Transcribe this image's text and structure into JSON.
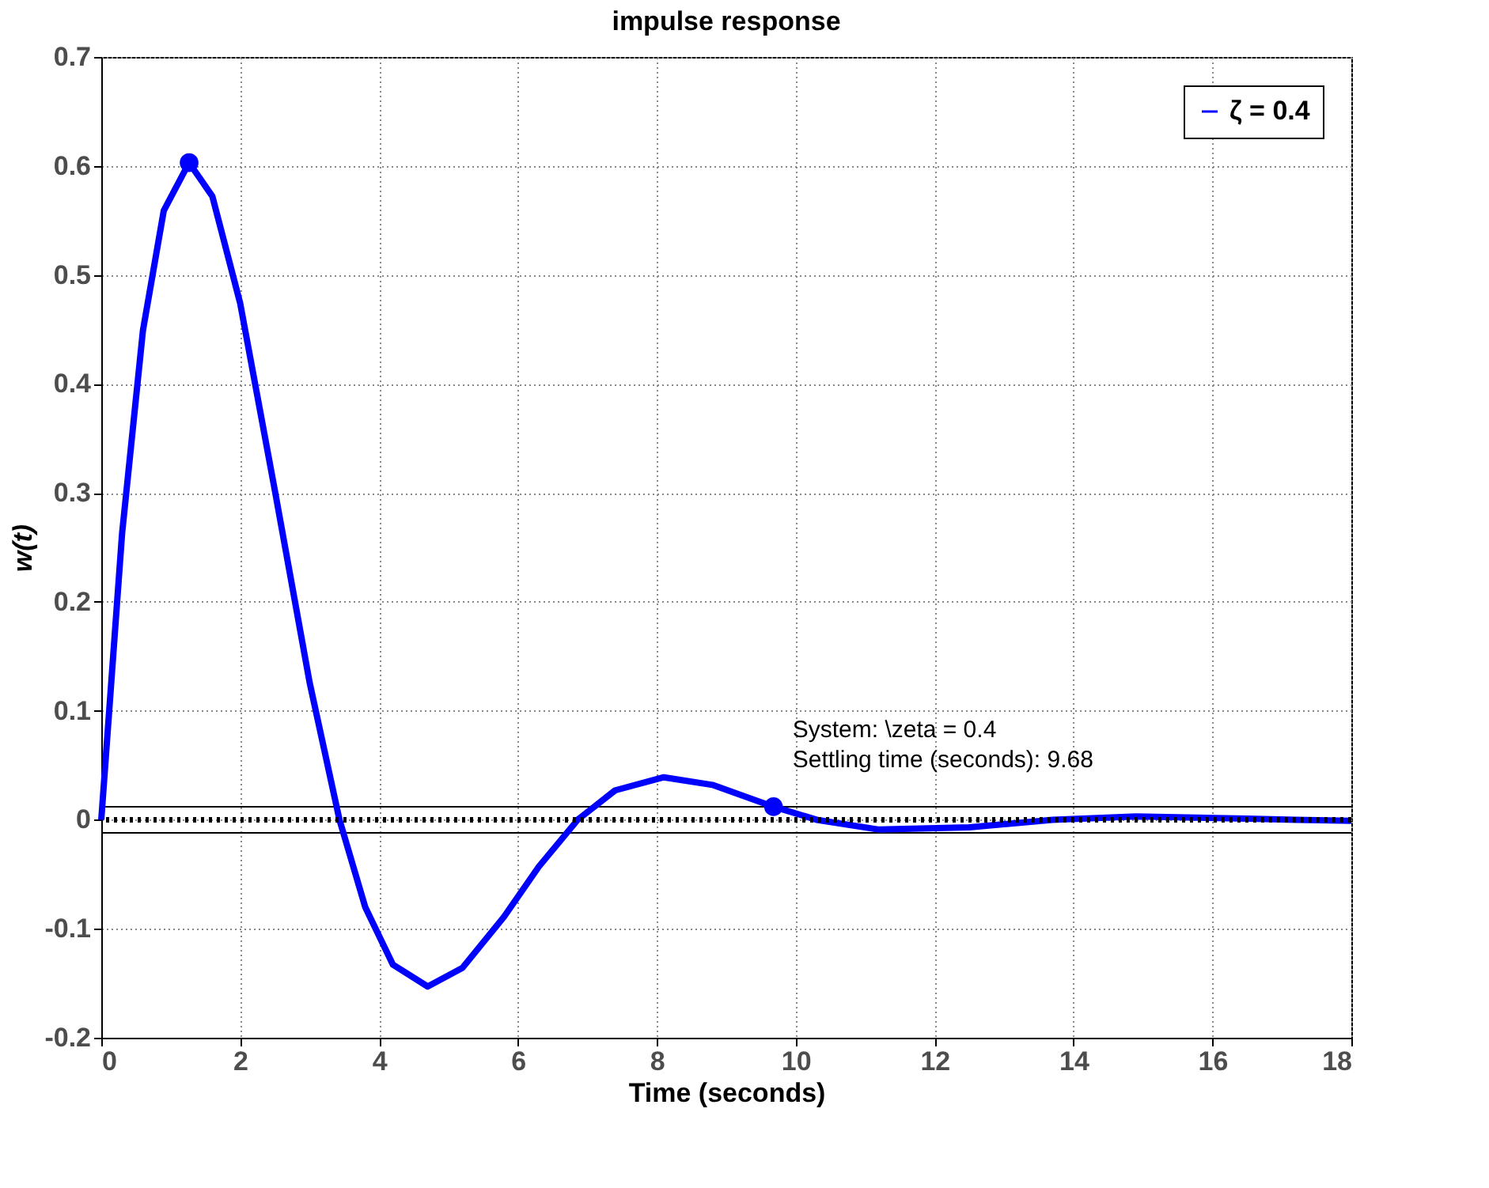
{
  "chart_data": {
    "type": "line",
    "title": "impulse response",
    "xlabel": "Time (seconds)",
    "ylabel": "w(t)",
    "xlim": [
      0,
      18
    ],
    "xticks": [
      0,
      2,
      4,
      6,
      8,
      10,
      12,
      14,
      16,
      18
    ],
    "ylim": [
      -0.2,
      0.7
    ],
    "yticks": [
      -0.2,
      -0.1,
      0,
      0.1,
      0.2,
      0.3,
      0.4,
      0.5,
      0.6,
      0.7
    ],
    "grid": true,
    "legend": "top right",
    "line_style": "solid",
    "marker": "none",
    "series": [
      {
        "name": "ζ = 0.4",
        "color": "#0000ff",
        "x": [
          0,
          0.3,
          0.6,
          0.9,
          1.265,
          1.6,
          2.0,
          2.5,
          3.0,
          3.43,
          3.8,
          4.2,
          4.7,
          5.2,
          5.8,
          6.3,
          6.86,
          7.4,
          8.1,
          8.8,
          9.68,
          10.3,
          11.2,
          12.5,
          13.7,
          14.9,
          16.5,
          17.2,
          18
        ],
        "values": [
          0,
          0.263,
          0.449,
          0.559,
          0.603,
          0.572,
          0.474,
          0.302,
          0.126,
          0,
          -0.08,
          -0.133,
          -0.153,
          -0.136,
          -0.089,
          -0.043,
          0,
          0.027,
          0.039,
          0.032,
          0.012,
          0,
          -0.009,
          -0.007,
          0,
          0.003,
          0.001,
          0,
          -0.001
        ]
      },
      {
        "color": "#0000ff",
        "type": "scatter",
        "marker": "circle",
        "x": [
          1.265,
          9.68
        ],
        "values": [
          0.603,
          0.012
        ]
      }
    ],
    "ref_lines": [
      {
        "axis": "y",
        "value": 0,
        "color": "#000000",
        "line_style": "dotted"
      },
      {
        "axis": "y",
        "value": 0.012,
        "color": "#000000",
        "line_style": "solid"
      },
      {
        "axis": "y",
        "value": -0.012,
        "color": "#000000",
        "line_style": "solid"
      }
    ],
    "annotations": [
      {
        "text": "System: \\zeta = 0.4\nSettling time (seconds): 9.68",
        "x": 9.68,
        "y": 0.012
      }
    ]
  }
}
